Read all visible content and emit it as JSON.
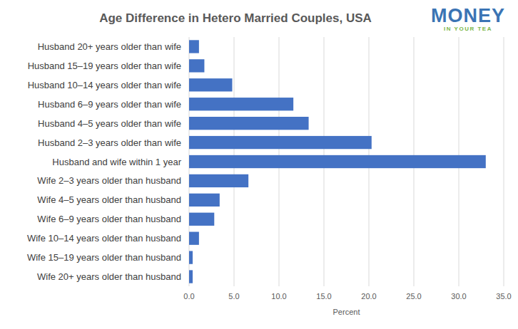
{
  "chart_data": {
    "type": "bar",
    "orientation": "horizontal",
    "title": "Age Difference in Hetero Married  Couples, USA",
    "annotations": [
      "MONEY",
      "IN YOUR TEA"
    ],
    "xlabel": "Percent",
    "categories": [
      "Husband 20+ years older than wife",
      "Husband 15–19 years older than wife",
      "Husband 10–14 years older than wife",
      "Husband 6–9 years older than wife",
      "Husband 4–5 years older than wife",
      "Husband 2–3 years older than wife",
      "Husband and wife within 1 year",
      "Wife 2–3 years older than husband",
      "Wife 4–5 years older than husband",
      "Wife 6–9 years older than husband",
      "Wife 10–14 years older than husband",
      "Wife 15–19 years older than husband",
      "Wife 20+ years older than husband"
    ],
    "values": [
      1.1,
      1.7,
      4.8,
      11.6,
      13.3,
      20.3,
      33.0,
      6.6,
      3.4,
      2.8,
      1.1,
      0.4,
      0.4
    ],
    "color": "#4472c4",
    "xlim": [
      0,
      35
    ],
    "xticks": [
      {
        "value": 0,
        "label": "0.0"
      },
      {
        "value": 5,
        "label": "5.0"
      },
      {
        "value": 10,
        "label": "10.0"
      },
      {
        "value": 15,
        "label": "15.0"
      },
      {
        "value": 20,
        "label": "20.0"
      },
      {
        "value": 25,
        "label": "25.0"
      },
      {
        "value": 30,
        "label": "30.0"
      },
      {
        "value": 35,
        "label": "35.0"
      }
    ],
    "grid": true
  }
}
